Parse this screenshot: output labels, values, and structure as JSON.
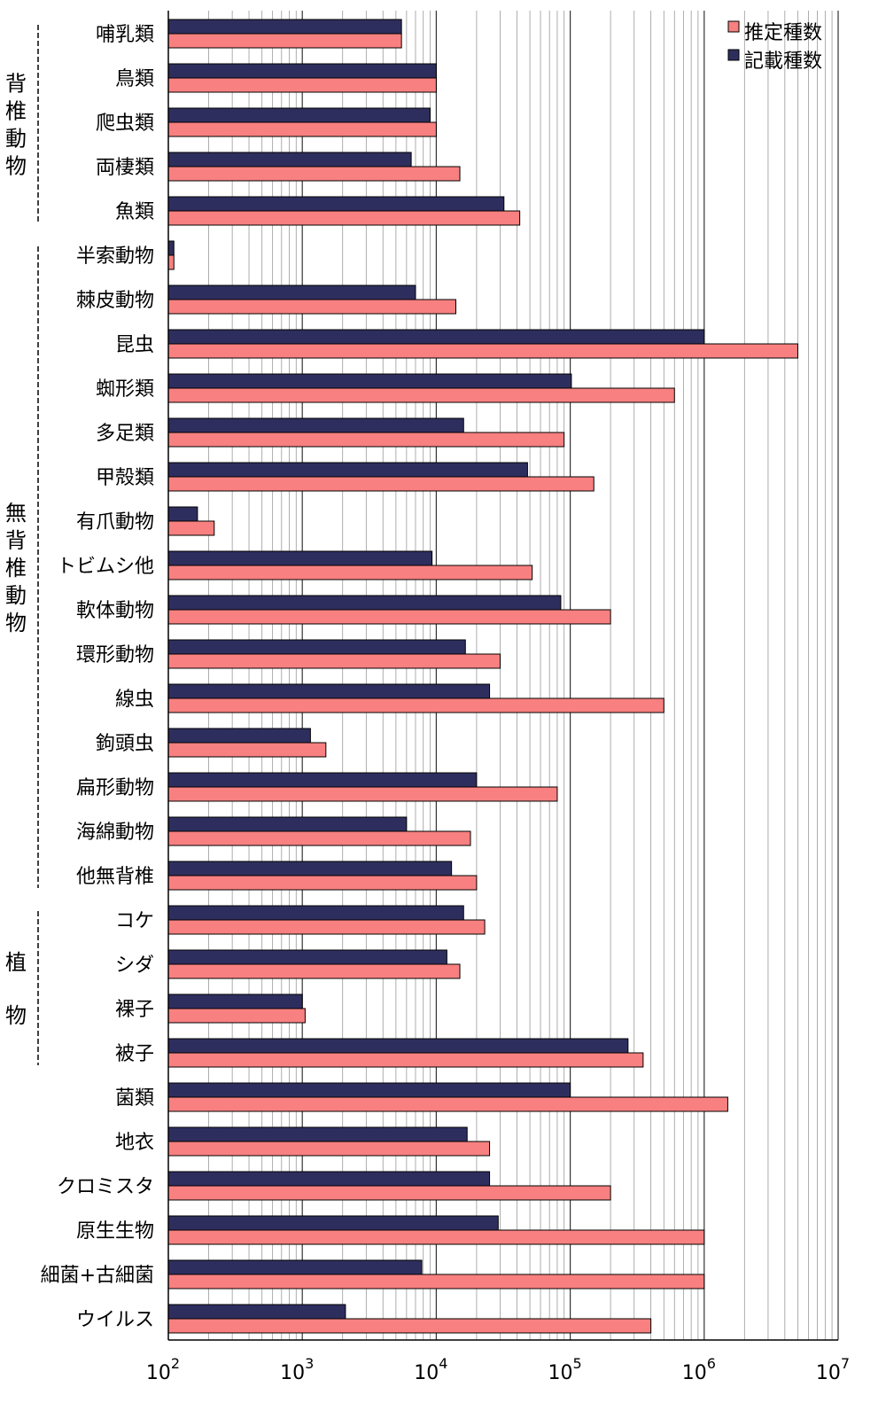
{
  "chart_data": {
    "type": "bar",
    "orientation": "horizontal",
    "x_scale": "log",
    "xlim": [
      100,
      10000000
    ],
    "x_ticks": [
      {
        "base": "10",
        "exp": "2"
      },
      {
        "base": "10",
        "exp": "3"
      },
      {
        "base": "10",
        "exp": "4"
      },
      {
        "base": "10",
        "exp": "5"
      },
      {
        "base": "10",
        "exp": "6"
      },
      {
        "base": "10",
        "exp": "7"
      }
    ],
    "categories": [
      "哺乳類",
      "鳥類",
      "爬虫類",
      "両棲類",
      "魚類",
      "半索動物",
      "棘皮動物",
      "昆虫",
      "蜘形類",
      "多足類",
      "甲殻類",
      "有爪動物",
      "トビムシ他",
      "軟体動物",
      "環形動物",
      "線虫",
      "鉤頭虫",
      "扁形動物",
      "海綿動物",
      "他無背椎",
      "コケ",
      "シダ",
      "裸子",
      "被子",
      "菌類",
      "地衣",
      "クロミスタ",
      "原生生物",
      "細菌+古細菌",
      "ウイルス"
    ],
    "series": [
      {
        "name": "記載種数",
        "color": "#2e2e5e",
        "values": [
          5500,
          10000,
          9000,
          6500,
          32000,
          110,
          7000,
          1000000,
          102000,
          16000,
          48000,
          165,
          9300,
          85000,
          16500,
          25000,
          1150,
          20000,
          6000,
          13000,
          16000,
          12000,
          1000,
          270000,
          100000,
          17000,
          25000,
          29000,
          7800,
          2100
        ]
      },
      {
        "name": "推定種数",
        "color": "#f88080",
        "values": [
          5500,
          10000,
          10000,
          15000,
          42000,
          110,
          14000,
          5000000,
          600000,
          90000,
          150000,
          220,
          52000,
          200000,
          30000,
          500000,
          1500,
          80000,
          18000,
          20000,
          23000,
          15000,
          1050,
          350000,
          1500000,
          25000,
          200000,
          1000000,
          1000000,
          400000
        ]
      }
    ],
    "groups": [
      {
        "label": "背椎動物",
        "chars": [
          "背",
          "椎",
          "動",
          "物"
        ],
        "from": 0,
        "to": 4
      },
      {
        "label": "無背椎動物",
        "chars": [
          "無",
          "背",
          "椎",
          "動",
          "物"
        ],
        "from": 5,
        "to": 19
      },
      {
        "label": "植物",
        "chars": [
          "植",
          "物"
        ],
        "from": 20,
        "to": 23
      }
    ],
    "legend": {
      "position": "top-right",
      "entries": [
        "推定種数",
        "記載種数"
      ]
    },
    "grid": true
  }
}
